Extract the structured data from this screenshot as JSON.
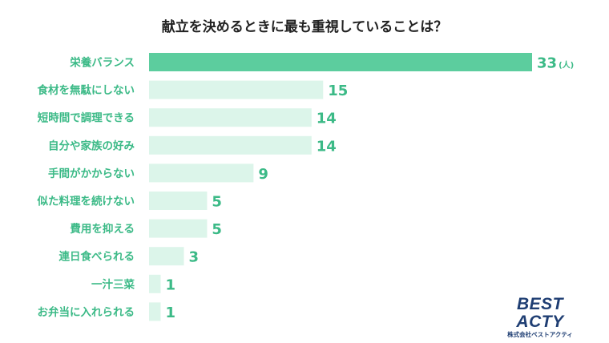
{
  "chart_data": {
    "type": "bar",
    "orientation": "horizontal",
    "title": "献立を決めるときに最も重視していることは？",
    "categories": [
      "栄養バランス",
      "食材を無駄にしない",
      "短時間で調理できる",
      "自分や家族の好み",
      "手間がかからない",
      "似た料理を続けない",
      "費用を抑える",
      "連日食べられる",
      "一汁三菜",
      "お弁当に入れられる"
    ],
    "values": [
      33,
      15,
      14,
      14,
      9,
      5,
      5,
      3,
      1,
      1
    ],
    "unit": "(人)",
    "highlight_index": 0,
    "xlim": [
      0,
      33
    ],
    "grid": false,
    "legend": "none"
  },
  "colors": {
    "highlight_bar": "#5ccd9e",
    "bar": "#dcf5ea",
    "highlight_label": "#3cba87",
    "label": "#3cba87",
    "value": "#3cba87"
  },
  "logo": {
    "main": "BEST ACTY",
    "sub": "株式会社ベストアクティ"
  }
}
